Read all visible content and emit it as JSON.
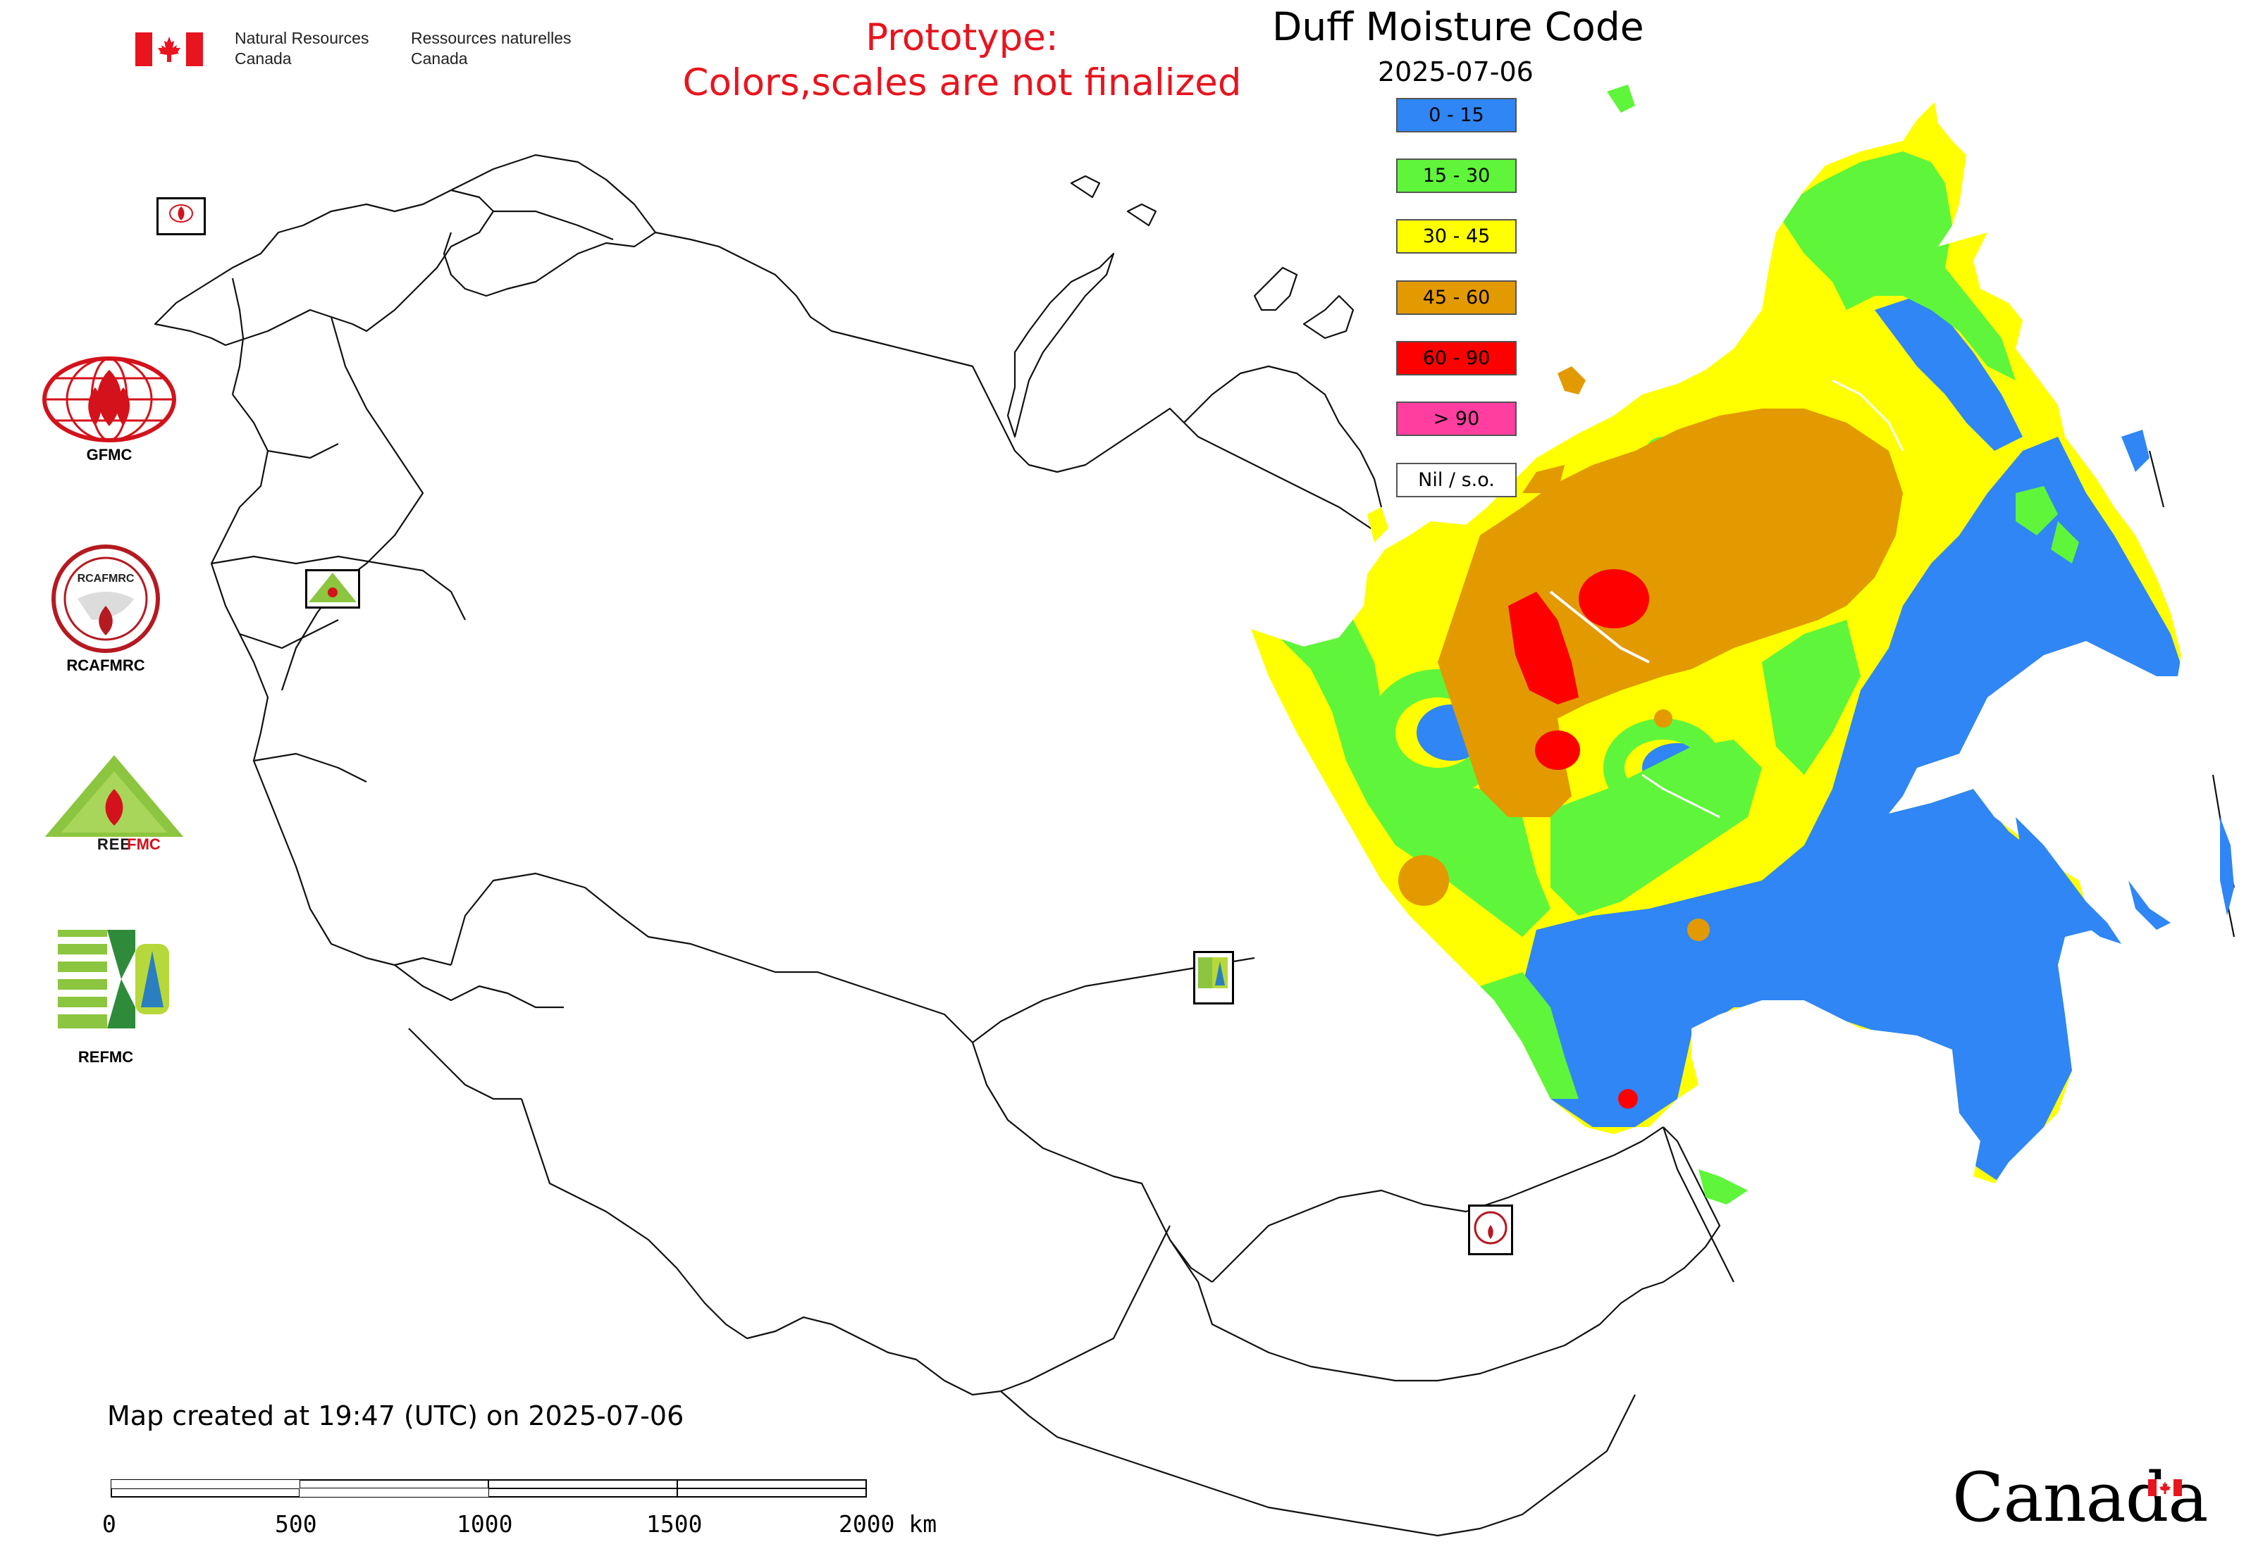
{
  "header": {
    "dept_en_line1": "Natural Resources",
    "dept_en_line2": "Canada",
    "dept_fr_line1": "Ressources naturelles",
    "dept_fr_line2": "Canada"
  },
  "prototype_notice": {
    "line1": "Prototype:",
    "line2": "Colors,scales are not finalized"
  },
  "map_title": "Duff Moisture Code",
  "map_date": "2025-07-06",
  "legend": [
    {
      "label": "0 - 15",
      "color": "#2f86f4"
    },
    {
      "label": "15 - 30",
      "color": "#5ff53a"
    },
    {
      "label": "30 - 45",
      "color": "#ffff00"
    },
    {
      "label": "45 - 60",
      "color": "#e29a00"
    },
    {
      "label": "60 - 90",
      "color": "#ff0000"
    },
    {
      "label": "> 90",
      "color": "#ff3ea0"
    },
    {
      "label": "Nil / s.o.",
      "color": "#ffffff"
    }
  ],
  "side_logos": [
    {
      "name": "GFMC"
    },
    {
      "name": "RCAFMRC"
    },
    {
      "name": "REEFMC"
    },
    {
      "name": "REFMC"
    }
  ],
  "footer": {
    "created_text": "Map created at 19:47 (UTC) on 2025-07-06",
    "scale_labels": [
      "0",
      "500",
      "1000",
      "1500",
      "2000 km"
    ],
    "wordmark": "Canada"
  }
}
